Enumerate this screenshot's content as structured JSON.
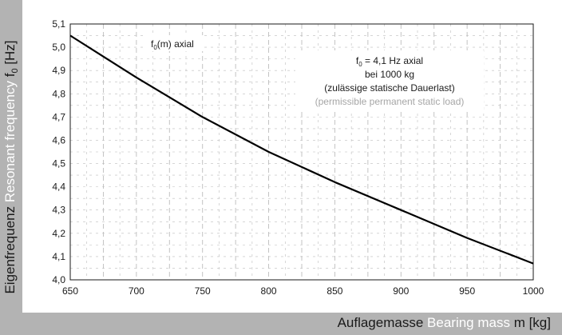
{
  "axis_labels": {
    "y_de": "Eigenfrequenz",
    "y_en": "Resonant frequency",
    "y_symbol": "f",
    "y_sub": "0",
    "y_unit": "[Hz]",
    "x_de": "Auflagemasse",
    "x_en": "Bearing mass",
    "x_symbol": "m [kg]"
  },
  "annotations": {
    "series_label_f": "f",
    "series_label_sub": "0",
    "series_label_rest": "(m) axial",
    "box_line1_f": "f",
    "box_line1_sub": "0",
    "box_line1_rest": " = 4,1 Hz axial",
    "box_line2": "bei 1000 kg",
    "box_line3": "(zulässige statische Dauerlast)",
    "box_line4": "(permissible permanent static load)"
  },
  "chart_data": {
    "type": "line",
    "xlim": [
      650,
      1000
    ],
    "ylim": [
      4.0,
      5.1
    ],
    "xticks": [
      "650",
      "700",
      "750",
      "800",
      "850",
      "900",
      "950",
      "1000"
    ],
    "yticks": [
      "4,0",
      "4,1",
      "4,2",
      "4,3",
      "4,4",
      "4,5",
      "4,6",
      "4,7",
      "4,8",
      "4,9",
      "5,0",
      "5,1"
    ],
    "grid": true,
    "series": [
      {
        "name": "f0(m) axial",
        "x": [
          650,
          700,
          750,
          800,
          850,
          900,
          950,
          1000
        ],
        "y": [
          5.05,
          4.87,
          4.7,
          4.55,
          4.42,
          4.3,
          4.18,
          4.07
        ]
      }
    ],
    "colors": {
      "line": "#000000",
      "grid": "#bdbdbd",
      "band": "#b3b3b3"
    }
  }
}
